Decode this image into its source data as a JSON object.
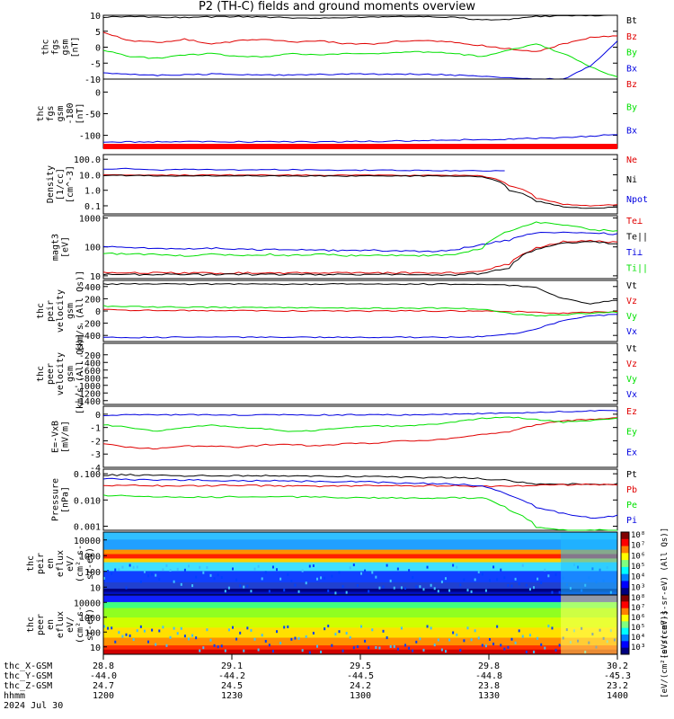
{
  "title": "P2 (TH-C) fields and ground moments overview",
  "colors": {
    "black": "#000000",
    "red": "#e00000",
    "green": "#00e000",
    "blue": "#0000e0"
  },
  "chart_data": [
    {
      "id": "fgs_gsm",
      "type": "line",
      "ylabel": [
        "thc",
        "fgs",
        "gsm",
        "[nT]"
      ],
      "ylim": [
        -10,
        10
      ],
      "yticks": [
        10,
        5,
        0,
        -5,
        -10
      ],
      "series": [
        {
          "name": "Bt",
          "color": "black",
          "values": [
            9.5,
            9.6,
            9.4,
            9.3,
            9.5,
            9.6,
            9.4,
            9.2,
            9.0,
            9.3,
            9.5,
            9.6,
            9.5,
            9.4,
            8.5,
            8.7,
            9.6,
            9.8,
            9.9,
            9.9
          ]
        },
        {
          "name": "Bz",
          "color": "red",
          "values": [
            4.5,
            2.0,
            1.5,
            2.5,
            1.0,
            2.0,
            2.5,
            1.5,
            2.0,
            1.0,
            1.0,
            2.0,
            2.0,
            1.5,
            0.5,
            -0.5,
            -1.5,
            1.0,
            3.0,
            3.5
          ]
        },
        {
          "name": "By",
          "color": "green",
          "values": [
            -1.0,
            -3.0,
            -3.5,
            -2.5,
            -2.0,
            -3.0,
            -3.0,
            -2.0,
            -2.5,
            -2.0,
            -2.0,
            -1.5,
            -1.5,
            -2.0,
            -3.0,
            -1.0,
            1.0,
            -2.0,
            -6.0,
            -9.5
          ]
        },
        {
          "name": "Bx",
          "color": "blue",
          "values": [
            -8.0,
            -8.5,
            -8.8,
            -8.6,
            -8.4,
            -8.6,
            -8.8,
            -8.7,
            -8.6,
            -8.5,
            -8.4,
            -8.4,
            -8.5,
            -8.8,
            -9.2,
            -9.6,
            -10.0,
            -10.0,
            -6.0,
            2.0
          ]
        }
      ]
    },
    {
      "id": "fgs_gsm_dup",
      "type": "line",
      "ylabel": [
        "thc",
        "fgs",
        "gsm",
        "-180",
        "[nT]"
      ],
      "ylim": [
        -130,
        30
      ],
      "yticks": [
        0,
        -50,
        -100
      ],
      "series": [
        {
          "name": "Bz",
          "color": "red",
          "values": []
        },
        {
          "name": "By",
          "color": "green",
          "values": []
        },
        {
          "name": "Bx",
          "color": "blue",
          "values": [
            -115,
            -115,
            -115,
            -115,
            -115,
            -115,
            -115,
            -115,
            -115,
            -115,
            -114,
            -113,
            -112,
            -111,
            -110,
            -109,
            -107,
            -105,
            -102,
            -98
          ]
        }
      ]
    },
    {
      "id": "density",
      "type": "line",
      "yscale": "log",
      "ylabel": [
        "Density",
        "[1/cc]",
        "[cm^-3]"
      ],
      "ylim": [
        0.03,
        200
      ],
      "yticks": [
        "100.0",
        "10.0",
        "1.0",
        "0.1"
      ],
      "series": [
        {
          "name": "Ne",
          "color": "red",
          "values": [
            10,
            10,
            9.5,
            9.4,
            9.5,
            9.6,
            9.4,
            9.5,
            9.3,
            9.2,
            9.4,
            9.3,
            9.2,
            9.0,
            8.5,
            2.0,
            0.3,
            0.12,
            0.1,
            0.12
          ]
        },
        {
          "name": "Ni",
          "color": "black",
          "values": [
            9,
            9,
            8.6,
            8.4,
            8.5,
            8.6,
            8.4,
            8.4,
            8.3,
            8.2,
            8.3,
            8.3,
            8.2,
            8.0,
            7.5,
            1.0,
            0.2,
            0.08,
            0.07,
            0.08
          ]
        },
        {
          "name": "Npot",
          "color": "blue",
          "values": [
            22,
            25,
            20,
            22,
            21,
            20,
            22,
            21,
            20,
            19,
            20,
            19,
            19,
            18,
            18,
            null,
            null,
            null,
            null,
            null
          ]
        }
      ]
    },
    {
      "id": "temperature",
      "type": "line",
      "yscale": "log",
      "ylabel": [
        "magt3",
        "[eV]"
      ],
      "ylim": [
        8,
        1200
      ],
      "yticks": [
        "1000",
        "100",
        "10"
      ],
      "series": [
        {
          "name": "Te⊥",
          "color": "red",
          "values": [
            13,
            13,
            12.5,
            12.5,
            12.5,
            12.5,
            12.5,
            12.5,
            12.5,
            12.5,
            12.5,
            12.5,
            12.5,
            13,
            14,
            25,
            90,
            150,
            160,
            140
          ]
        },
        {
          "name": "Te||",
          "color": "black",
          "values": [
            11,
            11,
            11,
            11,
            11,
            11,
            11,
            11,
            11,
            11,
            11,
            11,
            11,
            11,
            12,
            18,
            80,
            130,
            150,
            130
          ]
        },
        {
          "name": "Ti⊥",
          "color": "blue",
          "values": [
            100,
            95,
            90,
            85,
            90,
            85,
            80,
            80,
            75,
            75,
            75,
            70,
            70,
            80,
            120,
            170,
            300,
            320,
            300,
            280
          ]
        },
        {
          "name": "Ti||",
          "color": "green",
          "values": [
            60,
            55,
            55,
            50,
            55,
            50,
            55,
            50,
            55,
            50,
            50,
            50,
            50,
            55,
            90,
            350,
            700,
            600,
            400,
            350
          ]
        }
      ]
    },
    {
      "id": "peir_velocity",
      "type": "line",
      "ylabel": [
        "thc",
        "peir",
        "velocity",
        "gsm",
        "[km/s (All Qs)]"
      ],
      "ylim": [
        -500,
        500
      ],
      "yticks": [
        400,
        200,
        0,
        -200,
        -400
      ],
      "series": [
        {
          "name": "Vt",
          "color": "black",
          "values": [
            440,
            445,
            440,
            440,
            438,
            440,
            440,
            440,
            440,
            440,
            440,
            440,
            440,
            438,
            430,
            420,
            380,
            200,
            120,
            180
          ]
        },
        {
          "name": "Vz",
          "color": "red",
          "values": [
            20,
            15,
            10,
            10,
            5,
            5,
            0,
            0,
            0,
            0,
            0,
            0,
            0,
            0,
            0,
            -10,
            -20,
            -40,
            -20,
            -10
          ]
        },
        {
          "name": "Vy",
          "color": "green",
          "values": [
            80,
            70,
            65,
            60,
            60,
            55,
            55,
            50,
            50,
            50,
            45,
            45,
            45,
            40,
            30,
            -40,
            -80,
            -60,
            -40,
            -20
          ]
        },
        {
          "name": "Vx",
          "color": "blue",
          "values": [
            -430,
            -435,
            -430,
            -430,
            -428,
            -430,
            -430,
            -430,
            -432,
            -430,
            -430,
            -430,
            -430,
            -430,
            -420,
            -380,
            -300,
            -150,
            -80,
            -60
          ]
        }
      ]
    },
    {
      "id": "peer_velocity",
      "type": "line",
      "ylabel": [
        "thc",
        "peer",
        "velocity",
        "gsm",
        "[km/s (All Qs)]"
      ],
      "ylim": [
        -1500,
        100
      ],
      "yticks": [
        -200,
        -400,
        -600,
        -800,
        -1000,
        -1200,
        -1400
      ],
      "series": [
        {
          "name": "Vt",
          "color": "black",
          "values": []
        },
        {
          "name": "Vz",
          "color": "red",
          "values": []
        },
        {
          "name": "Vy",
          "color": "green",
          "values": []
        },
        {
          "name": "Vx",
          "color": "blue",
          "values": []
        }
      ]
    },
    {
      "id": "efield",
      "type": "line",
      "ylabel": [
        "E=-VxB",
        "[mV/m]"
      ],
      "ylim": [
        -4,
        0.6
      ],
      "yticks": [
        0,
        -1,
        -2,
        -3,
        -4
      ],
      "series": [
        {
          "name": "Ez",
          "color": "red",
          "values": [
            -2.2,
            -2.5,
            -2.6,
            -2.4,
            -2.4,
            -2.5,
            -2.3,
            -2.3,
            -2.4,
            -2.2,
            -2.2,
            -2.0,
            -2.0,
            -1.8,
            -1.5,
            -1.3,
            -0.8,
            -0.5,
            -0.4,
            -0.3
          ]
        },
        {
          "name": "Ey",
          "color": "green",
          "values": [
            -0.8,
            -1.0,
            -1.3,
            -1.0,
            -0.8,
            -1.0,
            -1.1,
            -1.3,
            -1.2,
            -1.0,
            -0.9,
            -0.9,
            -0.8,
            -0.6,
            -0.3,
            -0.2,
            -0.4,
            -0.6,
            -0.5,
            -0.3
          ]
        },
        {
          "name": "Ex",
          "color": "blue",
          "values": [
            -0.1,
            -0.05,
            -0.05,
            -0.05,
            -0.05,
            -0.05,
            -0.05,
            -0.05,
            -0.05,
            -0.05,
            -0.05,
            -0.05,
            -0.05,
            0.0,
            0.05,
            0.1,
            0.15,
            0.2,
            0.25,
            0.3
          ]
        }
      ]
    },
    {
      "id": "pressure",
      "type": "line",
      "yscale": "log",
      "ylabel": [
        "Pressure",
        "[nPa]"
      ],
      "ylim": [
        0.0007,
        0.15
      ],
      "yticks": [
        "0.100",
        "0.010",
        "0.001"
      ],
      "series": [
        {
          "name": "Pt",
          "color": "black",
          "values": [
            0.09,
            0.09,
            0.085,
            0.085,
            0.085,
            0.085,
            0.085,
            0.08,
            0.08,
            0.08,
            0.078,
            0.075,
            0.072,
            0.07,
            0.065,
            0.055,
            0.04,
            0.04,
            0.04,
            0.04
          ]
        },
        {
          "name": "Pb",
          "color": "red",
          "values": [
            0.035,
            0.036,
            0.035,
            0.034,
            0.035,
            0.036,
            0.035,
            0.034,
            0.033,
            0.034,
            0.035,
            0.036,
            0.035,
            0.035,
            0.032,
            0.033,
            0.036,
            0.038,
            0.039,
            0.039
          ]
        },
        {
          "name": "Pe",
          "color": "green",
          "values": [
            0.015,
            0.014,
            0.013,
            0.013,
            0.013,
            0.013,
            0.013,
            0.013,
            0.013,
            0.012,
            0.012,
            0.012,
            0.012,
            0.012,
            0.012,
            0.004,
            0.0009,
            0.0007,
            0.0007,
            0.0007
          ]
        },
        {
          "name": "Pi",
          "color": "blue",
          "values": [
            0.065,
            0.06,
            0.058,
            0.057,
            0.056,
            0.055,
            0.055,
            0.052,
            0.05,
            0.05,
            0.048,
            0.045,
            0.043,
            0.04,
            0.035,
            0.015,
            0.005,
            0.003,
            0.002,
            0.0025
          ]
        }
      ]
    },
    {
      "id": "peir_spectrogram",
      "type": "heatmap",
      "ylabel": [
        "thc",
        "peir",
        "en",
        "eflux",
        "eV/",
        "(cm^2-s-",
        "sr-eV)"
      ],
      "yticks": [
        "10000",
        "1000",
        "100",
        "10"
      ]
    },
    {
      "id": "peer_spectrogram",
      "type": "heatmap",
      "ylabel": [
        "thc",
        "peer",
        "en",
        "eflux",
        "eV/",
        "(cm^2-s-",
        "sr-eV)"
      ],
      "yticks": [
        "10000",
        "1000",
        "100",
        "10"
      ]
    }
  ],
  "colorbar": {
    "ticks_top": [
      "10^8",
      "10^7",
      "10^6",
      "10^5",
      "10^4",
      "10^3"
    ],
    "ticks_bottom": [
      "10^8",
      "10^7",
      "10^6",
      "10^5",
      "10^4",
      "10^3"
    ],
    "label": "[eV/(cm^2-s-sr-eV)]",
    "label_top": "[eV/(cm^2-s-sr-eV) (All Qs)]"
  },
  "xaxis": {
    "row_labels": [
      "thc_X-GSM",
      "thc_Y-GSM",
      "thc_Z-GSM",
      "hhmm",
      "2024 Jul 30"
    ],
    "ticks": [
      {
        "x": "28.8",
        "y": "-44.0",
        "z": "24.7",
        "t": "1200"
      },
      {
        "x": "29.1",
        "y": "-44.2",
        "z": "24.5",
        "t": "1230"
      },
      {
        "x": "29.5",
        "y": "-44.5",
        "z": "24.2",
        "t": "1300"
      },
      {
        "x": "29.8",
        "y": "-44.8",
        "z": "23.8",
        "t": "1330"
      },
      {
        "x": "30.2",
        "y": "-45.3",
        "z": "23.2",
        "t": "1400"
      }
    ]
  }
}
